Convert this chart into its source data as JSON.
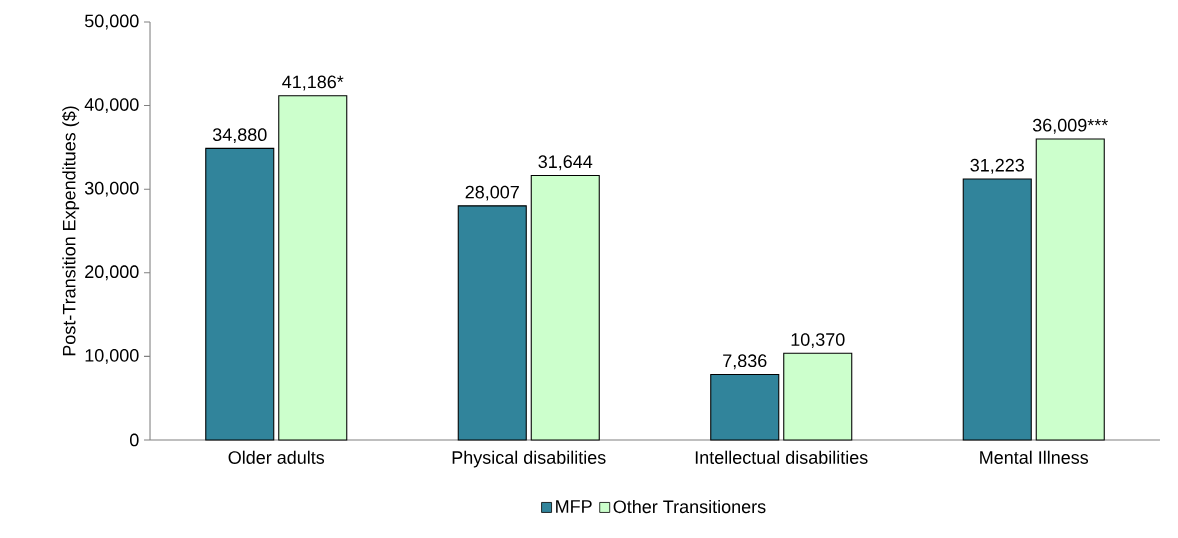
{
  "chart_data": {
    "type": "bar",
    "ylabel": "Post-Transition Expenditues ($)",
    "categories": [
      "Older adults",
      "Physical disabilities",
      "Intellectual disabilities",
      "Mental Illness"
    ],
    "series": [
      {
        "name": "MFP",
        "color": "#31849b",
        "values": [
          34880,
          28007,
          7836,
          31223
        ],
        "value_labels": [
          "34,880",
          "28,007",
          "7,836",
          "31,223"
        ]
      },
      {
        "name": "Other Transitioners",
        "color": "#ccffcc",
        "values": [
          41186,
          31644,
          10370,
          36009
        ],
        "value_labels": [
          "41,186*",
          "31,644",
          "10,370",
          "36,009***"
        ]
      }
    ],
    "ylim": [
      0,
      50000
    ],
    "yticks": [
      {
        "value": 0,
        "label": "0"
      },
      {
        "value": 10000,
        "label": "10,000"
      },
      {
        "value": 20000,
        "label": "20,000"
      },
      {
        "value": 30000,
        "label": "30,000"
      },
      {
        "value": 40000,
        "label": "40,000"
      },
      {
        "value": 50000,
        "label": "50,000"
      }
    ],
    "legend": "bottom"
  }
}
